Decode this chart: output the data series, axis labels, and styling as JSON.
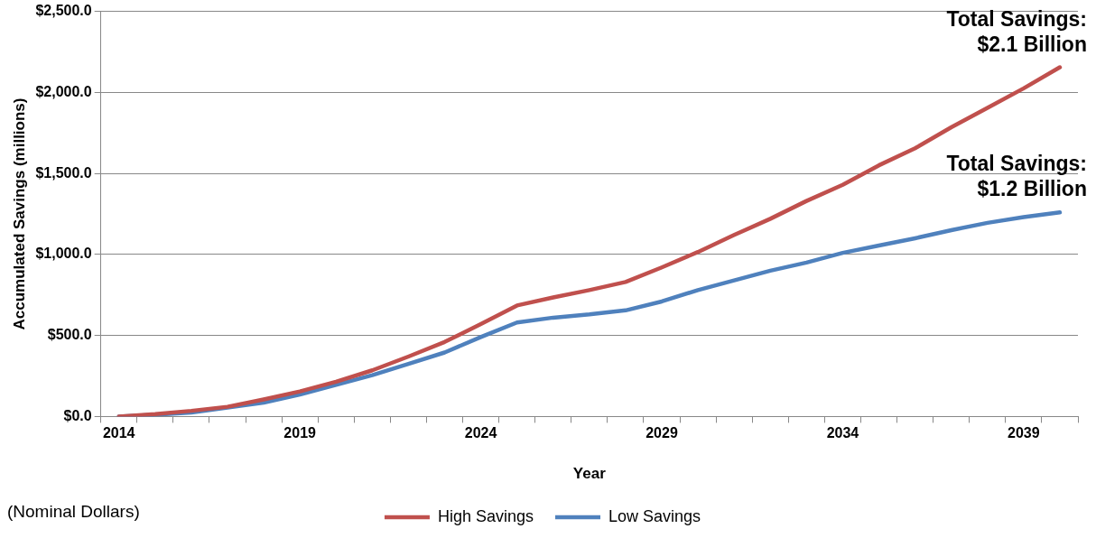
{
  "chart_data": {
    "type": "line",
    "xlabel": "Year",
    "ylabel": "Accumulated Savings (millions)",
    "categories": [
      "2014",
      null,
      null,
      null,
      null,
      "2019",
      null,
      null,
      null,
      null,
      "2024",
      null,
      null,
      null,
      null,
      "2029",
      null,
      null,
      null,
      null,
      "2034",
      null,
      null,
      null,
      null,
      "2039",
      null
    ],
    "series": [
      {
        "name": "High Savings",
        "color": "#c0504d",
        "values": [
          0,
          15,
          35,
          60,
          105,
          155,
          215,
          285,
          370,
          460,
          570,
          685,
          735,
          780,
          830,
          920,
          1015,
          1120,
          1220,
          1330,
          1430,
          1550,
          1655,
          1785,
          1905,
          2025,
          2155
        ]
      },
      {
        "name": "Low Savings",
        "color": "#4f81bd",
        "values": [
          0,
          10,
          25,
          55,
          85,
          135,
          195,
          255,
          325,
          395,
          490,
          580,
          610,
          630,
          655,
          710,
          780,
          840,
          900,
          950,
          1010,
          1055,
          1100,
          1150,
          1195,
          1230,
          1260
        ]
      }
    ],
    "ylim": [
      0,
      2500
    ],
    "yticks": [
      {
        "value": 0,
        "label": "$0.0"
      },
      {
        "value": 500,
        "label": "$500.0"
      },
      {
        "value": 1000,
        "label": "$1,000.0"
      },
      {
        "value": 1500,
        "label": "$1,500.0"
      },
      {
        "value": 2000,
        "label": "$2,000.0"
      },
      {
        "value": 2500,
        "label": "$2,500.0"
      }
    ],
    "grid": "y",
    "legend": "bottom",
    "marker": "none",
    "line_style": "solid",
    "annotations": [
      "Total Savings:\n$2.1 Billion",
      "Total Savings:\n$1.2 Billion",
      "(Nominal Dollars)"
    ]
  }
}
